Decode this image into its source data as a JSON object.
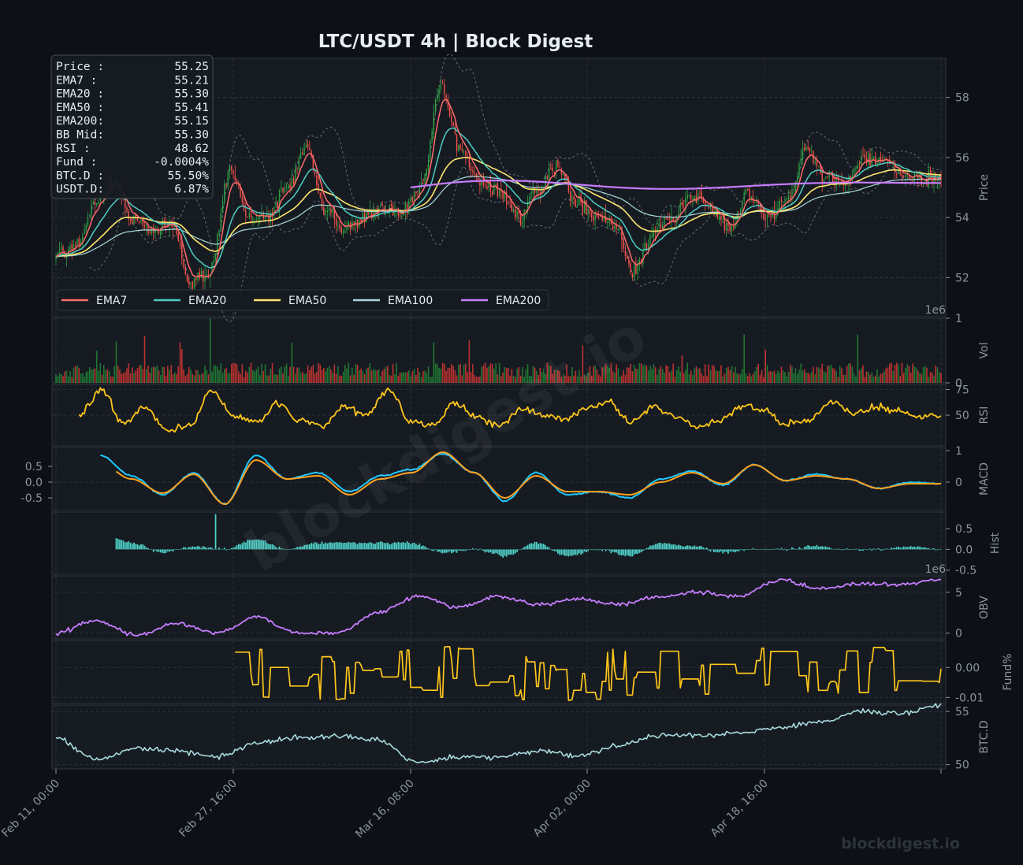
{
  "title": "LTC/USDT  4h  |  Block Digest",
  "watermark": "blockdigest.io",
  "footer_brand": "blockdigest.io",
  "colors": {
    "background": "#0d1117",
    "panel": "#161b22",
    "grid": "#3a3f46",
    "text": "#8b949e",
    "title": "#e6edf3",
    "candle_up": "#2ea043",
    "candle_down": "#f85149",
    "ema7": "#ff6b6b",
    "ema20": "#4ecdc4",
    "ema50": "#ffe66d",
    "ema100": "#a8dadc",
    "ema200": "#c77dff",
    "rsi": "#ffc61a",
    "macd": "#1ec8ff",
    "signal": "#ff9f1c",
    "hist": "#4ecdc4",
    "obv": "#c77dff",
    "fund": "#ffc61a",
    "btcd": "#a8dadc"
  },
  "info_box": {
    "rows": [
      {
        "label": "Price :",
        "value": "55.25"
      },
      {
        "label": "EMA7  :",
        "value": "55.21"
      },
      {
        "label": "EMA20 :",
        "value": "55.30"
      },
      {
        "label": "EMA50 :",
        "value": "55.41"
      },
      {
        "label": "EMA200:",
        "value": "55.15"
      },
      {
        "label": "BB Mid:",
        "value": "55.30"
      },
      {
        "label": "RSI   :",
        "value": "48.62"
      },
      {
        "label": "Fund  :",
        "value": "-0.0004%"
      },
      {
        "label": "BTC.D :",
        "value": "55.50%"
      },
      {
        "label": "USDT.D:",
        "value": "6.87%"
      }
    ]
  },
  "chart_data": [
    {
      "panel": "price",
      "type": "candlestick",
      "ylabel": "Price",
      "ylim": [
        50.7,
        59.3
      ],
      "yticks": [
        "52",
        "54",
        "56",
        "58"
      ],
      "legend": [
        "EMA7",
        "EMA20",
        "EMA50",
        "EMA100",
        "EMA200"
      ],
      "legend_position": "bottom-left",
      "x_categories": [
        "Feb 11, 00:00",
        "Feb 27, 16:00",
        "Mar 16, 08:00",
        "Apr 02, 00:00",
        "Apr 18, 16:00"
      ],
      "close_anchors": [
        52.8,
        53.0,
        54.5,
        55.2,
        54.0,
        53.6,
        53.8,
        51.8,
        52.2,
        55.5,
        54.0,
        54.0,
        55.0,
        56.3,
        54.3,
        53.6,
        54.0,
        54.3,
        54.2,
        55.0,
        58.3,
        56.3,
        55.2,
        54.9,
        54.0,
        54.8,
        55.8,
        54.5,
        54.0,
        53.8,
        52.2,
        53.5,
        54.0,
        54.8,
        54.3,
        53.6,
        54.8,
        54.0,
        54.6,
        56.2,
        55.3,
        55.1,
        56.0,
        55.9,
        55.4,
        55.3,
        55.25
      ],
      "ema200_start": [
        55.0,
        55.3
      ]
    },
    {
      "panel": "volume",
      "type": "bar",
      "ylabel": "Vol",
      "yticks": [
        "0",
        "1"
      ],
      "scale_label": "1e6",
      "ylim": [
        0,
        1
      ],
      "typical": 0.25,
      "max": 1.0
    },
    {
      "panel": "rsi",
      "type": "line",
      "ylabel": "RSI",
      "yticks": [
        "50",
        "75"
      ],
      "ylim": [
        20,
        80
      ],
      "anchors": [
        50,
        75,
        42,
        58,
        35,
        40,
        74,
        48,
        42,
        62,
        45,
        40,
        58,
        50,
        74,
        45,
        40,
        62,
        48,
        40,
        56,
        50,
        45,
        58,
        63,
        42,
        58,
        48,
        40,
        45,
        58,
        55,
        42,
        45,
        62,
        52,
        58,
        55,
        48,
        49
      ]
    },
    {
      "panel": "macd",
      "type": "line",
      "ylabel": "MACD",
      "yticks": [
        "0",
        "1"
      ],
      "left_yticks": [
        "0.5",
        "0.0",
        "-0.5"
      ],
      "ylim": [
        -0.9,
        1.1
      ],
      "macd_anchors": [
        0.85,
        0.2,
        -0.4,
        0.3,
        -0.7,
        0.85,
        0.1,
        0.3,
        -0.3,
        0.2,
        0.4,
        0.9,
        0.3,
        -0.6,
        0.3,
        -0.4,
        -0.3,
        -0.5,
        0.1,
        0.35,
        -0.1,
        0.55,
        0.05,
        0.25,
        0.1,
        -0.2,
        0.0,
        -0.05
      ],
      "signal_anchors": [
        0.6,
        0.1,
        -0.35,
        0.25,
        -0.7,
        0.7,
        0.1,
        0.2,
        -0.4,
        0.1,
        0.3,
        0.95,
        0.3,
        -0.5,
        0.2,
        -0.3,
        -0.3,
        -0.4,
        0.0,
        0.3,
        -0.05,
        0.55,
        0.05,
        0.2,
        0.1,
        -0.2,
        -0.05,
        -0.05
      ]
    },
    {
      "panel": "hist",
      "type": "bar",
      "ylabel": "Hist",
      "yticks": [
        "0.5",
        "0.0",
        "-0.5"
      ],
      "ylim": [
        -0.6,
        0.9
      ],
      "peak": 0.85
    },
    {
      "panel": "obv",
      "type": "line",
      "ylabel": "OBV",
      "yticks": [
        "0",
        "5"
      ],
      "scale_label": "1e6",
      "ylim": [
        -0.7,
        7.0
      ],
      "anchors": [
        0,
        1.5,
        -0.3,
        1.2,
        0,
        2.0,
        0,
        0,
        2.5,
        4.5,
        3.2,
        4.5,
        3.5,
        4.2,
        3.5,
        4.5,
        5.0,
        4.5,
        6.5,
        5.5,
        6.0,
        6.0,
        6.5
      ]
    },
    {
      "panel": "fund",
      "type": "line",
      "ylabel": "Fund%",
      "yticks": [
        "0.00",
        "-0.01"
      ],
      "ylim": [
        -0.012,
        0.009
      ],
      "start": 0.0,
      "range": [
        -0.011,
        0.007
      ]
    },
    {
      "panel": "btcd",
      "type": "line",
      "ylabel": "BTC.D",
      "yticks": [
        "50",
        "55"
      ],
      "ylim": [
        49.6,
        55.6
      ],
      "anchors": [
        52.5,
        50.5,
        51.5,
        51.3,
        50.7,
        52.0,
        52.5,
        52.7,
        52.3,
        50.2,
        50.7,
        50.7,
        51.3,
        50.8,
        51.8,
        52.8,
        52.7,
        53.0,
        53.5,
        54.0,
        55.0,
        54.8,
        55.5
      ]
    }
  ]
}
